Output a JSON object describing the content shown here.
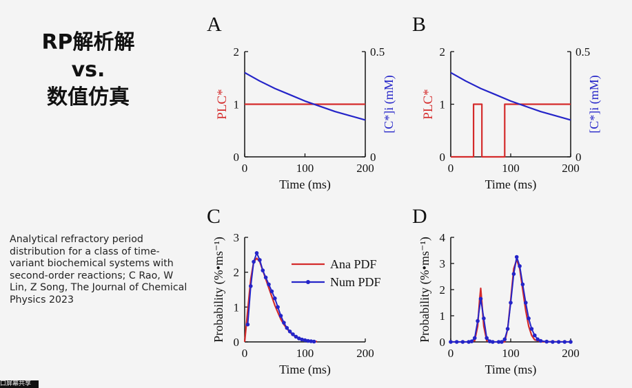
{
  "slide": {
    "title_lines": [
      "RP解析解",
      "vs.",
      "数值仿真"
    ],
    "citation": "Analytical refractory period distribution for a class of time-variant biochemical systems with second-order reactions; C Rao, W Lin, Z Song, The Journal of Chemical Physics 2023",
    "bottom_strip_text": "口屏幕共享"
  },
  "colors": {
    "red": "#d42a2a",
    "blue": "#2424c8",
    "axis": "#111111"
  },
  "chart_data": [
    {
      "panel": "A",
      "type": "line",
      "xlabel": "Time (ms)",
      "ylabel_left": "PLC*",
      "ylabel_right": "[C*]i (mM)",
      "xlim": [
        0,
        200
      ],
      "ylim_left": [
        0,
        2
      ],
      "ylim_right": [
        0,
        0.5
      ],
      "xticks": [
        0,
        100,
        200
      ],
      "yticks_left": [
        0,
        1,
        2
      ],
      "yticks_right": [
        0,
        0.5
      ],
      "series": [
        {
          "axis": "left",
          "color": "red",
          "x": [
            0,
            200
          ],
          "y": [
            1,
            1
          ]
        },
        {
          "axis": "right",
          "color": "blue",
          "x": [
            0,
            25,
            50,
            75,
            100,
            125,
            150,
            175,
            200
          ],
          "y": [
            0.4,
            0.36,
            0.325,
            0.295,
            0.265,
            0.24,
            0.215,
            0.195,
            0.175
          ]
        }
      ]
    },
    {
      "panel": "B",
      "type": "line",
      "xlabel": "Time (ms)",
      "ylabel_left": "PLC*",
      "ylabel_right": "[C*]i (mM)",
      "xlim": [
        0,
        200
      ],
      "ylim_left": [
        0,
        2
      ],
      "ylim_right": [
        0,
        0.5
      ],
      "xticks": [
        0,
        100,
        200
      ],
      "yticks_left": [
        0,
        1,
        2
      ],
      "yticks_right": [
        0,
        0.5
      ],
      "series": [
        {
          "axis": "left",
          "color": "red",
          "x": [
            0,
            38,
            38,
            52,
            52,
            90,
            90,
            200
          ],
          "y": [
            0,
            0,
            1,
            1,
            0,
            0,
            1,
            1
          ]
        },
        {
          "axis": "right",
          "color": "blue",
          "x": [
            0,
            25,
            50,
            75,
            100,
            125,
            150,
            175,
            200
          ],
          "y": [
            0.4,
            0.36,
            0.325,
            0.295,
            0.265,
            0.24,
            0.215,
            0.195,
            0.175
          ]
        }
      ]
    },
    {
      "panel": "C",
      "type": "line",
      "xlabel": "Time (ms)",
      "ylabel": "Probability (%•ms⁻¹)",
      "xlim": [
        0,
        200
      ],
      "ylim": [
        0,
        3
      ],
      "xticks": [
        0,
        100,
        200
      ],
      "yticks": [
        0,
        1,
        2,
        3
      ],
      "legend": {
        "position": "top-right",
        "entries": [
          "Ana PDF",
          "Num PDF"
        ]
      },
      "series": [
        {
          "name": "Ana PDF",
          "color": "red",
          "x": [
            0,
            5,
            10,
            15,
            20,
            25,
            30,
            35,
            40,
            45,
            50,
            55,
            60,
            65,
            70,
            75,
            80,
            85,
            90,
            95,
            100,
            110,
            120
          ],
          "y": [
            0,
            0.9,
            1.8,
            2.3,
            2.4,
            2.3,
            2.05,
            1.8,
            1.55,
            1.3,
            1.05,
            0.85,
            0.65,
            0.5,
            0.38,
            0.28,
            0.2,
            0.14,
            0.09,
            0.06,
            0.04,
            0.02,
            0.01
          ]
        },
        {
          "name": "Num PDF",
          "color": "blue",
          "x": [
            5,
            10,
            15,
            20,
            25,
            30,
            35,
            40,
            45,
            50,
            55,
            60,
            65,
            70,
            75,
            80,
            85,
            90,
            95,
            100,
            105,
            110,
            115
          ],
          "y": [
            0.5,
            1.6,
            2.3,
            2.55,
            2.35,
            2.05,
            1.85,
            1.65,
            1.45,
            1.25,
            1.0,
            0.75,
            0.55,
            0.4,
            0.3,
            0.22,
            0.15,
            0.1,
            0.07,
            0.05,
            0.03,
            0.02,
            0.01
          ]
        }
      ]
    },
    {
      "panel": "D",
      "type": "line",
      "xlabel": "Time (ms)",
      "ylabel": "Probability (%•ms⁻¹)",
      "xlim": [
        0,
        200
      ],
      "ylim": [
        0,
        4
      ],
      "xticks": [
        0,
        100,
        200
      ],
      "yticks": [
        0,
        1,
        2,
        3,
        4
      ],
      "series": [
        {
          "name": "Ana PDF",
          "color": "red",
          "x": [
            0,
            35,
            40,
            45,
            48,
            50,
            52,
            55,
            60,
            65,
            90,
            95,
            100,
            105,
            110,
            115,
            120,
            125,
            130,
            135,
            140,
            150,
            200
          ],
          "y": [
            0,
            0,
            0.05,
            0.6,
            1.6,
            2.05,
            1.5,
            0.6,
            0.05,
            0,
            0,
            0.5,
            1.6,
            2.8,
            3.15,
            2.8,
            2.0,
            1.2,
            0.6,
            0.25,
            0.08,
            0.01,
            0
          ]
        },
        {
          "name": "Num PDF",
          "color": "blue",
          "x": [
            0,
            10,
            20,
            30,
            35,
            40,
            45,
            50,
            55,
            60,
            65,
            70,
            80,
            85,
            90,
            95,
            100,
            105,
            110,
            115,
            120,
            125,
            130,
            135,
            140,
            145,
            150,
            160,
            170,
            180,
            190,
            200
          ],
          "y": [
            0,
            0,
            0,
            0,
            0.02,
            0.15,
            0.8,
            1.65,
            0.9,
            0.15,
            0.02,
            0,
            0,
            0,
            0.1,
            0.5,
            1.5,
            2.6,
            3.25,
            2.9,
            2.2,
            1.5,
            0.9,
            0.5,
            0.25,
            0.1,
            0.04,
            0.01,
            0,
            0,
            0,
            0
          ]
        }
      ]
    }
  ]
}
